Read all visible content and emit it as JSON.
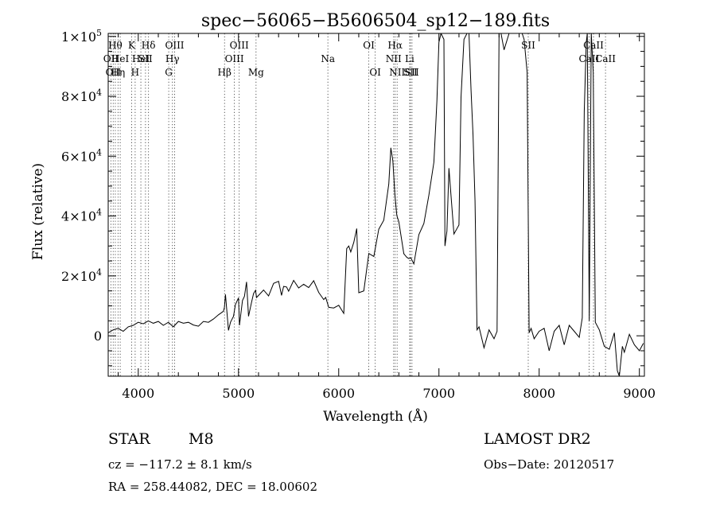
{
  "chart_data": {
    "type": "line",
    "title": "spec−56065−B5606504_sp12−189.fits",
    "xlabel": "Wavelength (Å)",
    "ylabel": "Flux (relative)",
    "xlim": [
      3700,
      9050
    ],
    "ylim": [
      -13500,
      101000
    ],
    "xticks": [
      {
        "value": 4000,
        "label": "4000"
      },
      {
        "value": 5000,
        "label": "5000"
      },
      {
        "value": 6000,
        "label": "6000"
      },
      {
        "value": 7000,
        "label": "7000"
      },
      {
        "value": 8000,
        "label": "8000"
      },
      {
        "value": 9000,
        "label": "9000"
      }
    ],
    "yticks": [
      {
        "value": 0,
        "mant": "0",
        "exp": ""
      },
      {
        "value": 20000,
        "mant": "2×10",
        "exp": "4"
      },
      {
        "value": 40000,
        "mant": "4×10",
        "exp": "4"
      },
      {
        "value": 60000,
        "mant": "6×10",
        "exp": "4"
      },
      {
        "value": 80000,
        "mant": "8×10",
        "exp": "4"
      },
      {
        "value": 100000,
        "mant": "1×10",
        "exp": "5"
      }
    ],
    "grid": false,
    "series": [
      {
        "x": [
          3700,
          3750,
          3800,
          3850,
          3900,
          3950,
          4000,
          4050,
          4100,
          4150,
          4200,
          4250,
          4300,
          4350,
          4400,
          4450,
          4500,
          4550,
          4600,
          4650,
          4700,
          4750,
          4800,
          4850,
          4860,
          4870,
          4900,
          4920,
          4950,
          4970,
          5000,
          5010,
          5040,
          5060,
          5080,
          5100,
          5130,
          5150,
          5170,
          5180,
          5200,
          5250,
          5300,
          5350,
          5400,
          5430,
          5450,
          5480,
          5500,
          5550,
          5600,
          5650,
          5700,
          5750,
          5800,
          5850,
          5870,
          5900,
          5950,
          6000,
          6050,
          6080,
          6100,
          6120,
          6150,
          6180,
          6200,
          6250,
          6300,
          6350,
          6400,
          6450,
          6500,
          6520,
          6540,
          6560,
          6580,
          6600,
          6650,
          6680,
          6700,
          6720,
          6750,
          6800,
          6850,
          6900,
          6950,
          6980,
          7000,
          7020,
          7050,
          7060,
          7080,
          7100,
          7150,
          7200,
          7220,
          7250,
          7280,
          7300,
          7320,
          7340,
          7360,
          7380,
          7400,
          7450,
          7500,
          7550,
          7580,
          7600,
          7620,
          7650,
          7700,
          7750,
          7800,
          7830,
          7850,
          7880,
          7900,
          7920,
          7950,
          8000,
          8050,
          8100,
          8150,
          8200,
          8250,
          8300,
          8350,
          8400,
          8430,
          8450,
          8470,
          8480,
          8500,
          8520,
          8540,
          8560,
          8600,
          8650,
          8700,
          8750,
          8780,
          8800,
          8830,
          8850,
          8900,
          8950,
          9000,
          9040
        ],
        "y": [
          1000,
          2000,
          2500,
          1500,
          3000,
          3500,
          4500,
          4000,
          5000,
          4200,
          4800,
          3500,
          4500,
          3000,
          4800,
          4200,
          4500,
          3600,
          3200,
          4800,
          4500,
          5600,
          7000,
          8200,
          9500,
          13800,
          1800,
          4500,
          6500,
          10500,
          12700,
          3500,
          11800,
          13200,
          18000,
          6500,
          11200,
          14100,
          15200,
          12800,
          13500,
          15300,
          13300,
          17500,
          18200,
          13500,
          16500,
          16300,
          14900,
          18500,
          16000,
          17200,
          16100,
          18400,
          14500,
          12100,
          12800,
          9500,
          9300,
          10200,
          7500,
          29100,
          30000,
          28000,
          31200,
          35800,
          14400,
          15000,
          27500,
          26500,
          35600,
          38600,
          50700,
          62800,
          58500,
          47300,
          40200,
          38100,
          27400,
          26200,
          25800,
          26000,
          24000,
          33800,
          37500,
          47000,
          58000,
          78500,
          98000,
          101000,
          99000,
          30000,
          35000,
          56000,
          34000,
          37000,
          79700,
          99000,
          101000,
          101000,
          82000,
          67000,
          45000,
          2000,
          3000,
          -4000,
          2000,
          -1000,
          1500,
          101000,
          101000,
          95500,
          101000,
          101000,
          101000,
          101000,
          99000,
          88000,
          1000,
          2500,
          -1000,
          1500,
          2500,
          -5000,
          1500,
          3500,
          -3000,
          3500,
          1500,
          -500,
          6000,
          75000,
          98000,
          101000,
          5000,
          101000,
          88000,
          4500,
          2000,
          -3500,
          -4500,
          1000,
          -11700,
          -13500,
          -3500,
          -5500,
          500,
          -3000,
          -5000,
          -2500
        ]
      }
    ],
    "lines": [
      {
        "w": 3727,
        "label": "OII",
        "row": 1
      },
      {
        "w": 3750,
        "label": "OII",
        "row": 2
      },
      {
        "w": 3771,
        "label": "Hθ",
        "row": 0
      },
      {
        "w": 3798,
        "label": "Hη",
        "row": 2
      },
      {
        "w": 3820,
        "label": "HeI",
        "row": 1
      },
      {
        "w": 3934,
        "label": "K",
        "row": 0
      },
      {
        "w": 3969,
        "label": "H",
        "row": 2
      },
      {
        "w": 4026,
        "label": "HeI",
        "row": 1
      },
      {
        "w": 4072,
        "label": "SII",
        "row": 1
      },
      {
        "w": 4102,
        "label": "Hδ",
        "row": 0
      },
      {
        "w": 4304,
        "label": "G",
        "row": 2
      },
      {
        "w": 4341,
        "label": "Hγ",
        "row": 1
      },
      {
        "w": 4363,
        "label": "OIII",
        "row": 0
      },
      {
        "w": 4861,
        "label": "Hβ",
        "row": 2
      },
      {
        "w": 4959,
        "label": "OIII",
        "row": 1
      },
      {
        "w": 5007,
        "label": "OIII",
        "row": 0
      },
      {
        "w": 5175,
        "label": "Mg",
        "row": 2
      },
      {
        "w": 5892,
        "label": "Na",
        "row": 1
      },
      {
        "w": 6300,
        "label": "OI",
        "row": 0
      },
      {
        "w": 6364,
        "label": "OI",
        "row": 2
      },
      {
        "w": 6548,
        "label": "NII",
        "row": 1
      },
      {
        "w": 6563,
        "label": "Hα",
        "row": 0
      },
      {
        "w": 6583,
        "label": "NII",
        "row": 2
      },
      {
        "w": 6708,
        "label": "Li",
        "row": 1
      },
      {
        "w": 6716,
        "label": "SII",
        "row": 2
      },
      {
        "w": 6731,
        "label": "SII",
        "row": 2
      },
      {
        "w": 7891,
        "label": "SII",
        "row": 0
      },
      {
        "w": 8498,
        "label": "CaII",
        "row": 1
      },
      {
        "w": 8542,
        "label": "CaII",
        "row": 0
      },
      {
        "w": 8662,
        "label": "CaII",
        "row": 1
      }
    ]
  },
  "info": {
    "object_class": "STAR",
    "subclass": "M8",
    "survey": "LAMOST DR2",
    "redshift": "cz = −117.2 ± 8.1 km/s",
    "obs_date": "Obs−Date: 20120517",
    "coords": "RA = 258.44082, DEC =  18.00602"
  }
}
